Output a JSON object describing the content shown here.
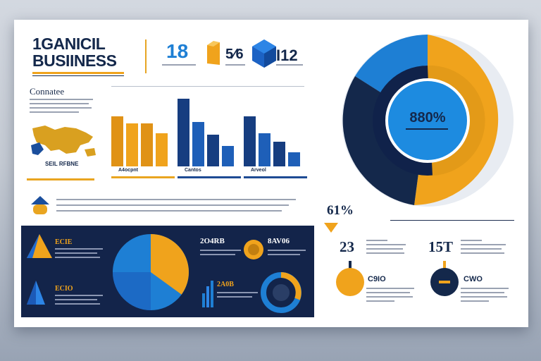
{
  "header": {
    "title_line1": "1GANICIL",
    "title_line2": "BUSIINESS"
  },
  "stats": [
    {
      "value": "18",
      "color": "#1e7fd4"
    },
    {
      "value": "5⁄6",
      "color": "#14284b"
    },
    {
      "value": "I12",
      "color": "#14284b"
    }
  ],
  "left_section": {
    "title": "Connatee",
    "map_label": "SEIL RFBNE"
  },
  "bar_groups": [
    {
      "label": "A4ocpnt",
      "color": "#e9a520",
      "values": [
        72,
        62,
        62,
        48
      ]
    },
    {
      "label": "Cantos",
      "color": "#1e4b94",
      "values": [
        98,
        64,
        46,
        30
      ]
    },
    {
      "label": "Arveol",
      "color": "#1e4b94",
      "values": [
        72,
        48,
        36,
        20
      ]
    }
  ],
  "donut": {
    "center_label": "880%"
  },
  "dark_panel": {
    "label_top": "ECIE",
    "label_bottom": "ECIO",
    "pie_values": [
      35,
      65
    ],
    "label_right_top": "2O4RB",
    "label_right_mid": "8AV06",
    "label_right_bottom": "2A0B"
  },
  "right_stats": {
    "percent": "61%",
    "left_value": "23",
    "right_value": "15T",
    "left_desc": "C9IO",
    "right_desc": "CWO"
  },
  "colors": {
    "navy": "#14284b",
    "gold": "#f0a31c",
    "blue": "#1e7fd4"
  }
}
